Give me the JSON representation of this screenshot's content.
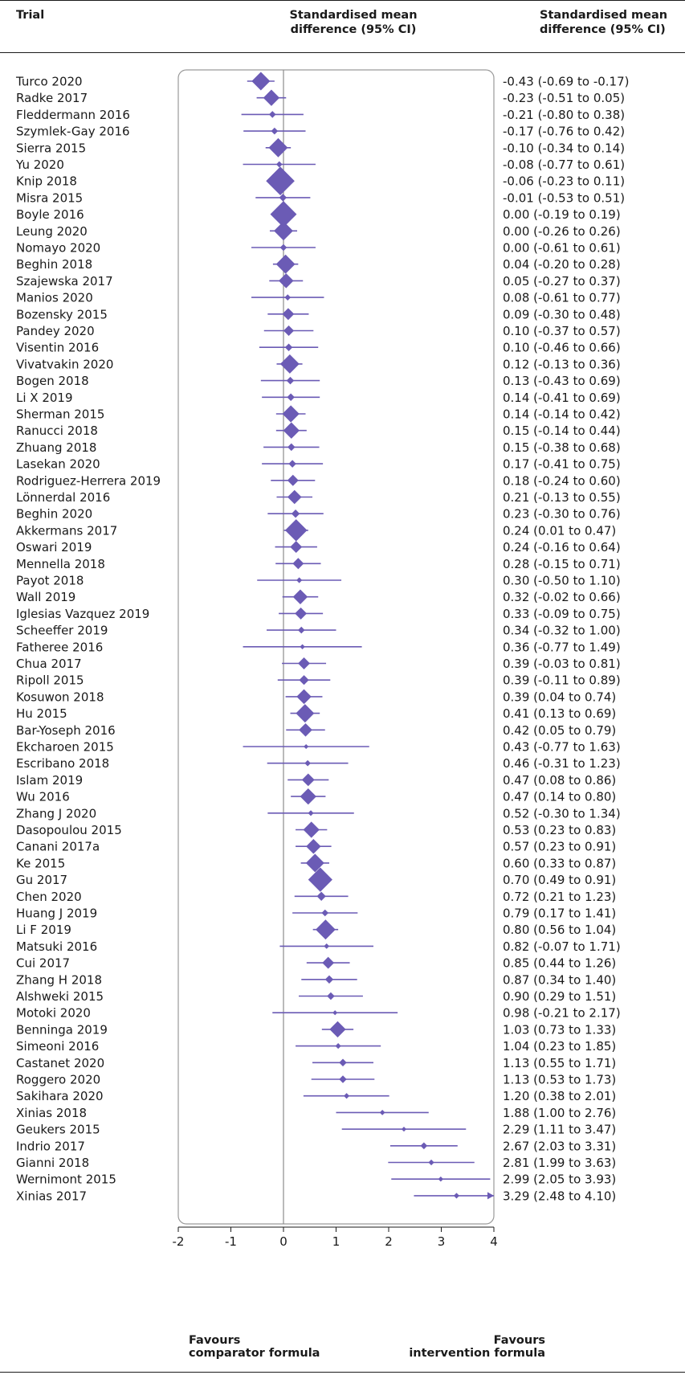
{
  "header": {
    "trial": "Trial",
    "smd_line1": "Standardised mean",
    "smd_line2": "difference (95% CI)",
    "ci_line1": "Standardised mean",
    "ci_line2": "difference (95% CI)"
  },
  "footer": {
    "left_line1": "Favours",
    "left_line2": "comparator formula",
    "right_line1": "Favours",
    "right_line2": "intervention formula"
  },
  "colors": {
    "marker": "#6b5bb5",
    "text": "#1a1a1a",
    "frame": "#9a9a9a",
    "null_line": "#8c8c8c"
  },
  "chart_data": {
    "type": "forest",
    "xlim": [
      -2,
      4
    ],
    "x_ticks": [
      "-2",
      "-1",
      "0",
      "1",
      "2",
      "3",
      "4"
    ],
    "null_value": 0,
    "grid": false,
    "rows": [
      {
        "study": "Turco 2020",
        "smd": -0.43,
        "lo": -0.69,
        "hi": -0.17,
        "ci_text": "-0.43 (-0.69 to -0.17)",
        "weight": 1.0
      },
      {
        "study": "Radke 2017",
        "smd": -0.23,
        "lo": -0.51,
        "hi": 0.05,
        "ci_text": "-0.23 (-0.51 to 0.05)",
        "weight": 0.85
      },
      {
        "study": "Fleddermann 2016",
        "smd": -0.21,
        "lo": -0.8,
        "hi": 0.38,
        "ci_text": "-0.21 (-0.80 to 0.38)",
        "weight": 0.2
      },
      {
        "study": "Szymlek-Gay 2016",
        "smd": -0.17,
        "lo": -0.76,
        "hi": 0.42,
        "ci_text": "-0.17 (-0.76 to 0.42)",
        "weight": 0.2
      },
      {
        "study": "Sierra 2015",
        "smd": -0.1,
        "lo": -0.34,
        "hi": 0.14,
        "ci_text": "-0.10 (-0.34 to 0.14)",
        "weight": 1.05
      },
      {
        "study": "Yu 2020",
        "smd": -0.08,
        "lo": -0.77,
        "hi": 0.61,
        "ci_text": "-0.08 (-0.77 to 0.61)",
        "weight": 0.15
      },
      {
        "study": "Knip 2018",
        "smd": -0.06,
        "lo": -0.23,
        "hi": 0.11,
        "ci_text": "-0.06 (-0.23 to 0.11)",
        "weight": 1.7
      },
      {
        "study": "Misra 2015",
        "smd": -0.01,
        "lo": -0.53,
        "hi": 0.51,
        "ci_text": "-0.01 (-0.53 to 0.51)",
        "weight": 0.25
      },
      {
        "study": "Boyle 2016",
        "smd": 0.0,
        "lo": -0.19,
        "hi": 0.19,
        "ci_text": "0.00 (-0.19 to 0.19)",
        "weight": 1.55
      },
      {
        "study": "Leung 2020",
        "smd": 0.0,
        "lo": -0.26,
        "hi": 0.26,
        "ci_text": "0.00 (-0.26 to 0.26)",
        "weight": 1.05
      },
      {
        "study": "Nomayo 2020",
        "smd": 0.0,
        "lo": -0.61,
        "hi": 0.61,
        "ci_text": "0.00 (-0.61 to 0.61)",
        "weight": 0.2
      },
      {
        "study": "Beghin 2018",
        "smd": 0.04,
        "lo": -0.2,
        "hi": 0.28,
        "ci_text": "0.04 (-0.20 to 0.28)",
        "weight": 1.05
      },
      {
        "study": "Szajewska 2017",
        "smd": 0.05,
        "lo": -0.27,
        "hi": 0.37,
        "ci_text": "0.05 (-0.27 to 0.37)",
        "weight": 0.75
      },
      {
        "study": "Manios 2020",
        "smd": 0.08,
        "lo": -0.61,
        "hi": 0.77,
        "ci_text": "0.08 (-0.61 to 0.77)",
        "weight": 0.15
      },
      {
        "study": "Bozensky 2015",
        "smd": 0.09,
        "lo": -0.3,
        "hi": 0.48,
        "ci_text": "0.09 (-0.30 to 0.48)",
        "weight": 0.55
      },
      {
        "study": "Pandey 2020",
        "smd": 0.1,
        "lo": -0.37,
        "hi": 0.57,
        "ci_text": "0.10 (-0.37 to 0.57)",
        "weight": 0.45
      },
      {
        "study": "Visentin 2016",
        "smd": 0.1,
        "lo": -0.46,
        "hi": 0.66,
        "ci_text": "0.10 (-0.46 to 0.66)",
        "weight": 0.25
      },
      {
        "study": "Vivatvakin 2020",
        "smd": 0.12,
        "lo": -0.13,
        "hi": 0.36,
        "ci_text": "0.12 (-0.13 to 0.36)",
        "weight": 1.05
      },
      {
        "study": "Bogen 2018",
        "smd": 0.13,
        "lo": -0.43,
        "hi": 0.69,
        "ci_text": "0.13 (-0.43 to 0.69)",
        "weight": 0.25
      },
      {
        "study": "Li X 2019",
        "smd": 0.14,
        "lo": -0.41,
        "hi": 0.69,
        "ci_text": "0.14 (-0.41 to 0.69)",
        "weight": 0.25
      },
      {
        "study": "Sherman 2015",
        "smd": 0.14,
        "lo": -0.14,
        "hi": 0.42,
        "ci_text": "0.14 (-0.14 to 0.42)",
        "weight": 0.9
      },
      {
        "study": "Ranucci 2018",
        "smd": 0.15,
        "lo": -0.14,
        "hi": 0.44,
        "ci_text": "0.15 (-0.14 to 0.44)",
        "weight": 0.85
      },
      {
        "study": "Zhuang 2018",
        "smd": 0.15,
        "lo": -0.38,
        "hi": 0.68,
        "ci_text": "0.15 (-0.38 to 0.68)",
        "weight": 0.25
      },
      {
        "study": "Lasekan 2020",
        "smd": 0.17,
        "lo": -0.41,
        "hi": 0.75,
        "ci_text": "0.17 (-0.41 to 0.75)",
        "weight": 0.25
      },
      {
        "study": "Rodriguez-Herrera 2019",
        "smd": 0.18,
        "lo": -0.24,
        "hi": 0.6,
        "ci_text": "0.18 (-0.24 to 0.60)",
        "weight": 0.5
      },
      {
        "study": "Lönnerdal 2016",
        "smd": 0.21,
        "lo": -0.13,
        "hi": 0.55,
        "ci_text": "0.21 (-0.13 to 0.55)",
        "weight": 0.7
      },
      {
        "study": "Beghin 2020",
        "smd": 0.23,
        "lo": -0.3,
        "hi": 0.76,
        "ci_text": "0.23 (-0.30 to 0.76)",
        "weight": 0.3
      },
      {
        "study": "Akkermans 2017",
        "smd": 0.24,
        "lo": 0.01,
        "hi": 0.47,
        "ci_text": "0.24 (0.01 to 0.47)",
        "weight": 1.25
      },
      {
        "study": "Oswari 2019",
        "smd": 0.24,
        "lo": -0.16,
        "hi": 0.64,
        "ci_text": "0.24 (-0.16 to 0.64)",
        "weight": 0.55
      },
      {
        "study": "Mennella 2018",
        "smd": 0.28,
        "lo": -0.15,
        "hi": 0.71,
        "ci_text": "0.28 (-0.15 to 0.71)",
        "weight": 0.5
      },
      {
        "study": "Payot 2018",
        "smd": 0.3,
        "lo": -0.5,
        "hi": 1.1,
        "ci_text": "0.30 (-0.50 to 1.10)",
        "weight": 0.12
      },
      {
        "study": "Wall 2019",
        "smd": 0.32,
        "lo": -0.02,
        "hi": 0.66,
        "ci_text": "0.32 (-0.02 to 0.66)",
        "weight": 0.75
      },
      {
        "study": "Iglesias Vazquez 2019",
        "smd": 0.33,
        "lo": -0.09,
        "hi": 0.75,
        "ci_text": "0.33 (-0.09 to 0.75)",
        "weight": 0.55
      },
      {
        "study": "Scheeffer 2019",
        "smd": 0.34,
        "lo": -0.32,
        "hi": 1.0,
        "ci_text": "0.34 (-0.32 to 1.00)",
        "weight": 0.2
      },
      {
        "study": "Fatheree 2016",
        "smd": 0.36,
        "lo": -0.77,
        "hi": 1.49,
        "ci_text": "0.36 (-0.77 to 1.49)",
        "weight": 0.08
      },
      {
        "study": "Chua 2017",
        "smd": 0.39,
        "lo": -0.03,
        "hi": 0.81,
        "ci_text": "0.39 (-0.03 to 0.81)",
        "weight": 0.55
      },
      {
        "study": "Ripoll 2015",
        "smd": 0.39,
        "lo": -0.11,
        "hi": 0.89,
        "ci_text": "0.39 (-0.11 to 0.89)",
        "weight": 0.4
      },
      {
        "study": "Kosuwon 2018",
        "smd": 0.39,
        "lo": 0.04,
        "hi": 0.74,
        "ci_text": "0.39 (0.04 to 0.74)",
        "weight": 0.75
      },
      {
        "study": "Hu 2015",
        "smd": 0.41,
        "lo": 0.13,
        "hi": 0.69,
        "ci_text": "0.41 (0.13 to 0.69)",
        "weight": 1.0
      },
      {
        "study": "Bar-Yoseph 2016",
        "smd": 0.42,
        "lo": 0.05,
        "hi": 0.79,
        "ci_text": "0.42 (0.05 to 0.79)",
        "weight": 0.65
      },
      {
        "study": "Ekcharoen 2015",
        "smd": 0.43,
        "lo": -0.77,
        "hi": 1.63,
        "ci_text": "0.43 (-0.77 to 1.63)",
        "weight": 0.06
      },
      {
        "study": "Escribano 2018",
        "smd": 0.46,
        "lo": -0.31,
        "hi": 1.23,
        "ci_text": "0.46 (-0.31 to 1.23)",
        "weight": 0.15
      },
      {
        "study": "Islam 2019",
        "smd": 0.47,
        "lo": 0.08,
        "hi": 0.86,
        "ci_text": "0.47 (0.08 to 0.86)",
        "weight": 0.6
      },
      {
        "study": "Wu 2016",
        "smd": 0.47,
        "lo": 0.14,
        "hi": 0.8,
        "ci_text": "0.47 (0.14 to 0.80)",
        "weight": 0.85
      },
      {
        "study": "Zhang J 2020",
        "smd": 0.52,
        "lo": -0.3,
        "hi": 1.34,
        "ci_text": "0.52 (-0.30 to 1.34)",
        "weight": 0.12
      },
      {
        "study": "Dasopoulou 2015",
        "smd": 0.53,
        "lo": 0.23,
        "hi": 0.83,
        "ci_text": "0.53 (0.23 to 0.83)",
        "weight": 0.85
      },
      {
        "study": "Canani 2017a",
        "smd": 0.57,
        "lo": 0.23,
        "hi": 0.91,
        "ci_text": "0.57 (0.23 to 0.91)",
        "weight": 0.75
      },
      {
        "study": "Ke 2015",
        "smd": 0.6,
        "lo": 0.33,
        "hi": 0.87,
        "ci_text": "0.60 (0.33 to 0.87)",
        "weight": 1.0
      },
      {
        "study": "Gu 2017",
        "smd": 0.7,
        "lo": 0.49,
        "hi": 0.91,
        "ci_text": "0.70 (0.49 to 0.91)",
        "weight": 1.4
      },
      {
        "study": "Chen 2020",
        "smd": 0.72,
        "lo": 0.21,
        "hi": 1.23,
        "ci_text": "0.72 (0.21 to 1.23)",
        "weight": 0.35
      },
      {
        "study": "Huang J 2019",
        "smd": 0.79,
        "lo": 0.17,
        "hi": 1.41,
        "ci_text": "0.79 (0.17 to 1.41)",
        "weight": 0.2
      },
      {
        "study": "Li F 2019",
        "smd": 0.8,
        "lo": 0.56,
        "hi": 1.04,
        "ci_text": "0.80 (0.56 to 1.04)",
        "weight": 1.1
      },
      {
        "study": "Matsuki 2016",
        "smd": 0.82,
        "lo": -0.07,
        "hi": 1.71,
        "ci_text": "0.82 (-0.07 to 1.71)",
        "weight": 0.1
      },
      {
        "study": "Cui 2017",
        "smd": 0.85,
        "lo": 0.44,
        "hi": 1.26,
        "ci_text": "0.85 (0.44 to 1.26)",
        "weight": 0.55
      },
      {
        "study": "Zhang H 2018",
        "smd": 0.87,
        "lo": 0.34,
        "hi": 1.4,
        "ci_text": "0.87 (0.34 to 1.40)",
        "weight": 0.3
      },
      {
        "study": "Alshweki 2015",
        "smd": 0.9,
        "lo": 0.29,
        "hi": 1.51,
        "ci_text": "0.90 (0.29 to 1.51)",
        "weight": 0.25
      },
      {
        "study": "Motoki 2020",
        "smd": 0.98,
        "lo": -0.21,
        "hi": 2.17,
        "ci_text": "0.98 (-0.21 to 2.17)",
        "weight": 0.06
      },
      {
        "study": "Benninga 2019",
        "smd": 1.03,
        "lo": 0.73,
        "hi": 1.33,
        "ci_text": "1.03 (0.73 to 1.33)",
        "weight": 0.85
      },
      {
        "study": "Simeoni 2016",
        "smd": 1.04,
        "lo": 0.23,
        "hi": 1.85,
        "ci_text": "1.04 (0.23 to 1.85)",
        "weight": 0.12
      },
      {
        "study": "Castanet 2020",
        "smd": 1.13,
        "lo": 0.55,
        "hi": 1.71,
        "ci_text": "1.13 (0.55 to 1.71)",
        "weight": 0.25
      },
      {
        "study": "Roggero 2020",
        "smd": 1.13,
        "lo": 0.53,
        "hi": 1.73,
        "ci_text": "1.13 (0.53 to 1.73)",
        "weight": 0.25
      },
      {
        "study": "Sakihara 2020",
        "smd": 1.2,
        "lo": 0.38,
        "hi": 2.01,
        "ci_text": "1.20 (0.38 to 2.01)",
        "weight": 0.12
      },
      {
        "study": "Xinias 2018",
        "smd": 1.88,
        "lo": 1.0,
        "hi": 2.76,
        "ci_text": "1.88 (1.00 to 2.76)",
        "weight": 0.1
      },
      {
        "study": "Geukers 2015",
        "smd": 2.29,
        "lo": 1.11,
        "hi": 3.47,
        "ci_text": "2.29 (1.11 to 3.47)",
        "weight": 0.06
      },
      {
        "study": "Indrio 2017",
        "smd": 2.67,
        "lo": 2.03,
        "hi": 3.31,
        "ci_text": "2.67 (2.03 to 3.31)",
        "weight": 0.2
      },
      {
        "study": "Gianni 2018",
        "smd": 2.81,
        "lo": 1.99,
        "hi": 3.63,
        "ci_text": "2.81 (1.99 to 3.63)",
        "weight": 0.12
      },
      {
        "study": "Wernimont 2015",
        "smd": 2.99,
        "lo": 2.05,
        "hi": 3.93,
        "ci_text": "2.99 (2.05 to 3.93)",
        "weight": 0.08
      },
      {
        "study": "Xinias 2017",
        "smd": 3.29,
        "lo": 2.48,
        "hi": 4.1,
        "ci_text": "3.29 (2.48 to 4.10)",
        "weight": 0.12
      }
    ]
  }
}
